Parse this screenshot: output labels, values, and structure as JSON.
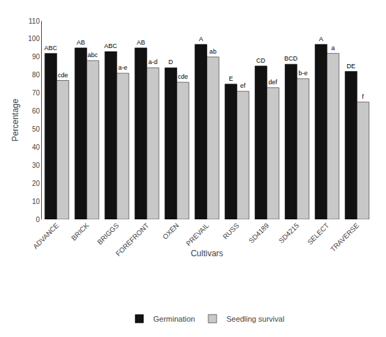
{
  "chart_data": {
    "type": "bar",
    "x_label": "Cultivars",
    "y_label": "Percentage",
    "categories": [
      "ADVANCE",
      "BRICK",
      "BRIGGS",
      "FOREFRONT",
      "OXEN",
      "PREVAIL",
      "RUSS",
      "SD4189",
      "SD4215",
      "SELECT",
      "TRAVERSE"
    ],
    "series": [
      {
        "name": "Germination",
        "color": "#111111",
        "values": [
          92,
          95,
          93,
          95,
          84,
          97,
          75,
          85,
          86,
          97,
          82
        ],
        "annotations": [
          "ABC",
          "AB",
          "ABC",
          "AB",
          "D",
          "A",
          "E",
          "CD",
          "BCD",
          "A",
          "DE"
        ]
      },
      {
        "name": "Seedling survival",
        "color": "#c8c8c8",
        "values": [
          77,
          88,
          81,
          84,
          76,
          90,
          71,
          73,
          78,
          92,
          65
        ],
        "annotations": [
          "cde",
          "abc",
          "a-e",
          "a-d",
          "cde",
          "ab",
          "ef",
          "def",
          "b-e",
          "a",
          "f"
        ]
      }
    ],
    "ylim": [
      0,
      110
    ],
    "yticks": [
      0,
      10,
      20,
      30,
      40,
      50,
      60,
      70,
      80,
      90,
      100,
      110
    ],
    "grid": false,
    "legend": "bottom"
  }
}
